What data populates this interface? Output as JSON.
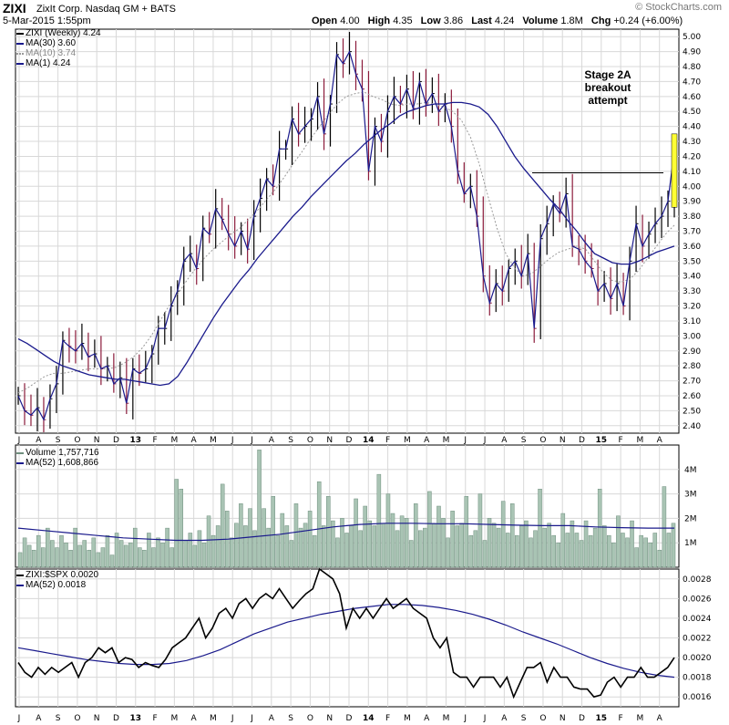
{
  "header": {
    "ticker": "ZIXI",
    "company": "ZixIt Corp.  Nasdaq GM + BATS",
    "watermark": "© StockCharts.com",
    "date": "5-Mar-2015 1:55pm",
    "stats": [
      {
        "label": "Open",
        "value": "4.00"
      },
      {
        "label": "High",
        "value": "4.35"
      },
      {
        "label": "Low",
        "value": "3.86"
      },
      {
        "label": "Last",
        "value": "4.24"
      },
      {
        "label": "Volume",
        "value": "1.8M"
      },
      {
        "label": "Chg",
        "value": "+0.24 (+6.00%)"
      }
    ]
  },
  "legends": {
    "price": [
      "ZIXI (Weekly) 4.24",
      "MA(30) 3.60",
      "MA(10) 3.74",
      "MA(1) 4.24"
    ],
    "volume": [
      "Volume 1,757,716",
      "MA(52) 1,608,866"
    ],
    "ratio": [
      "ZIXI:$SPX 0.0020",
      "MA(52) 0.0018"
    ]
  },
  "annotation": [
    "Stage 2A",
    "breakout",
    "attempt"
  ],
  "colors": {
    "ma_line": "#1a1a8c",
    "ma10": "#999999",
    "bar_up": "#000000",
    "bar_down": "#8b1a3a",
    "volume_fill": "#a9c4b4",
    "volume_stroke": "#6f8f7e",
    "highlight": "#ffff33",
    "grid": "#d8d8d8"
  },
  "chart_data": [
    {
      "type": "line",
      "panel": "price",
      "title": "ZIXI (Weekly)",
      "x_labels": [
        "J",
        "A",
        "S",
        "O",
        "N",
        "D",
        "13",
        "F",
        "M",
        "A",
        "M",
        "J",
        "J",
        "A",
        "S",
        "O",
        "N",
        "D",
        "14",
        "F",
        "M",
        "A",
        "M",
        "J",
        "J",
        "A",
        "S",
        "O",
        "N",
        "D",
        "15",
        "F",
        "M",
        "A"
      ],
      "y_ticks": [
        2.4,
        2.5,
        2.6,
        2.7,
        2.8,
        2.9,
        3.0,
        3.1,
        3.2,
        3.3,
        3.4,
        3.5,
        3.6,
        3.7,
        3.8,
        3.9,
        4.0,
        4.1,
        4.2,
        4.3,
        4.4,
        4.5,
        4.6,
        4.7,
        4.8,
        4.9,
        5.0
      ],
      "ylim": [
        2.35,
        5.05
      ],
      "resistance_level": 4.09,
      "series": [
        {
          "name": "ZIXI (Weekly)",
          "role": "close",
          "values": [
            2.6,
            2.5,
            2.47,
            2.52,
            2.44,
            2.58,
            2.68,
            2.97,
            2.93,
            2.9,
            2.95,
            2.86,
            2.88,
            2.78,
            2.8,
            2.68,
            2.72,
            2.55,
            2.78,
            2.75,
            2.78,
            2.88,
            3.05,
            3.05,
            3.2,
            3.3,
            3.5,
            3.55,
            3.45,
            3.72,
            3.68,
            3.85,
            3.78,
            3.68,
            3.6,
            3.7,
            3.58,
            3.8,
            3.92,
            4.05,
            4.0,
            4.25,
            4.25,
            4.45,
            4.35,
            4.4,
            4.45,
            4.6,
            4.35,
            4.55,
            4.88,
            4.82,
            4.9,
            4.75,
            4.65,
            4.1,
            4.4,
            4.3,
            4.5,
            4.6,
            4.55,
            4.65,
            4.52,
            4.7,
            4.55,
            4.62,
            4.5,
            4.55,
            4.4,
            4.1,
            3.95,
            4.0,
            3.8,
            3.4,
            3.22,
            3.35,
            3.3,
            3.45,
            3.5,
            3.4,
            3.55,
            3.05,
            3.65,
            3.75,
            3.88,
            3.82,
            3.95,
            3.6,
            3.58,
            3.5,
            3.45,
            3.3,
            3.35,
            3.25,
            3.35,
            3.2,
            3.5,
            3.75,
            3.6,
            3.68,
            3.75,
            3.8,
            3.9,
            4.24
          ]
        },
        {
          "name": "MA(30)",
          "values": [
            2.98,
            2.95,
            2.91,
            2.87,
            2.83,
            2.8,
            2.78,
            2.76,
            2.74,
            2.73,
            2.72,
            2.71,
            2.71,
            2.7,
            2.69,
            2.68,
            2.67,
            2.68,
            2.73,
            2.82,
            2.92,
            3.02,
            3.12,
            3.21,
            3.29,
            3.37,
            3.44,
            3.52,
            3.59,
            3.66,
            3.73,
            3.8,
            3.86,
            3.93,
            3.99,
            4.05,
            4.11,
            4.17,
            4.22,
            4.28,
            4.33,
            4.38,
            4.42,
            4.47,
            4.5,
            4.52,
            4.54,
            4.55,
            4.55,
            4.56,
            4.56,
            4.55,
            4.53,
            4.48,
            4.4,
            4.3,
            4.2,
            4.12,
            4.05,
            3.98,
            3.91,
            3.85,
            3.77,
            3.7,
            3.62,
            3.55,
            3.52,
            3.49,
            3.48,
            3.48,
            3.5,
            3.53,
            3.56,
            3.58,
            3.6
          ]
        },
        {
          "name": "MA(10)",
          "values": [
            2.62,
            2.65,
            2.69,
            2.73,
            2.75,
            2.75,
            2.76,
            2.77,
            2.78,
            2.78,
            2.78,
            2.79,
            2.82,
            2.86,
            2.92,
            3.0,
            3.1,
            3.2,
            3.28,
            3.37,
            3.45,
            3.52,
            3.58,
            3.63,
            3.68,
            3.72,
            3.78,
            3.84,
            3.91,
            3.98,
            4.06,
            4.15,
            4.23,
            4.32,
            4.4,
            4.48,
            4.55,
            4.6,
            4.62,
            4.63,
            4.6,
            4.58,
            4.55,
            4.54,
            4.55,
            4.55,
            4.56,
            4.55,
            4.53,
            4.5,
            4.44,
            4.33,
            4.15,
            3.93,
            3.72,
            3.55,
            3.45,
            3.4,
            3.42,
            3.47,
            3.52,
            3.56,
            3.58,
            3.6,
            3.58,
            3.5,
            3.42,
            3.37,
            3.36,
            3.38,
            3.44,
            3.52,
            3.6,
            3.68,
            3.74
          ]
        }
      ]
    },
    {
      "type": "bar",
      "panel": "volume",
      "title": "Volume",
      "y_ticks": [
        "1M",
        "2M",
        "3M",
        "4M"
      ],
      "ylim": [
        0,
        5000000
      ],
      "series": [
        {
          "name": "Volume",
          "values": [
            600000,
            1200000,
            900000,
            700000,
            1300000,
            800000,
            1600000,
            1100000,
            800000,
            1300000,
            1000000,
            700000,
            1600000,
            900000,
            1100000,
            700000,
            1200000,
            600000,
            800000,
            1300000,
            500000,
            1400000,
            1100000,
            900000,
            1000000,
            1600000,
            800000,
            700000,
            1400000,
            800000,
            1200000,
            1000000,
            1600000,
            800000,
            3600000,
            3200000,
            1100000,
            1400000,
            900000,
            1500000,
            1000000,
            2100000,
            1300000,
            1700000,
            3400000,
            2300000,
            1200000,
            1800000,
            2600000,
            1700000,
            2400000,
            1500000,
            4800000,
            2400000,
            1600000,
            2900000,
            1300000,
            2200000,
            1700000,
            1100000,
            2600000,
            1600000,
            1800000,
            2300000,
            1300000,
            3500000,
            1700000,
            2900000,
            1900000,
            1200000,
            2000000,
            1400000,
            1700000,
            2800000,
            1500000,
            2500000,
            1900000,
            1700000,
            3800000,
            1800000,
            3000000,
            2200000,
            1500000,
            2100000,
            2000000,
            1100000,
            2600000,
            1500000,
            1600000,
            3100000,
            1800000,
            2500000,
            2000000,
            1200000,
            2300000,
            1700000,
            1800000,
            2900000,
            1300000,
            1500000,
            3000000,
            1100000,
            2000000,
            1800000,
            1600000,
            2700000,
            1400000,
            2600000,
            1300000,
            1700000,
            1900000,
            1200000,
            1500000,
            3200000,
            1600000,
            1800000,
            1300000,
            1000000,
            2200000,
            1400000,
            1900000,
            1400000,
            1100000,
            1900000,
            1300000,
            1600000,
            3200000,
            1700000,
            1300000,
            1000000,
            2100000,
            1400000,
            1200000,
            1900000,
            800000,
            1300000,
            1200000,
            1000000,
            1400000,
            700000,
            3300000,
            1400000,
            1800000
          ]
        },
        {
          "name": "MA(52)",
          "values": [
            1600000,
            1500000,
            1400000,
            1300000,
            1200000,
            1150000,
            1100000,
            1100000,
            1150000,
            1250000,
            1350000,
            1500000,
            1650000,
            1750000,
            1800000,
            1800000,
            1780000,
            1780000,
            1750000,
            1720000,
            1700000,
            1700000,
            1650000,
            1620000,
            1600000,
            1600000
          ]
        }
      ]
    },
    {
      "type": "line",
      "panel": "ratio",
      "title": "ZIXI:$SPX",
      "y_ticks": [
        0.0016,
        0.0018,
        0.002,
        0.0022,
        0.0024,
        0.0026,
        0.0028
      ],
      "ylim": [
        0.0015,
        0.0029
      ],
      "series": [
        {
          "name": "ZIXI:$SPX",
          "values": [
            0.00195,
            0.00185,
            0.0018,
            0.0019,
            0.00183,
            0.0019,
            0.00185,
            0.0019,
            0.00195,
            0.0018,
            0.00195,
            0.002,
            0.0021,
            0.00205,
            0.0021,
            0.00195,
            0.002,
            0.00198,
            0.0019,
            0.00195,
            0.00192,
            0.0019,
            0.00198,
            0.0021,
            0.00215,
            0.0022,
            0.0023,
            0.0024,
            0.0022,
            0.0023,
            0.00245,
            0.0025,
            0.0024,
            0.00255,
            0.0026,
            0.0025,
            0.0026,
            0.00265,
            0.0026,
            0.0027,
            0.0026,
            0.0025,
            0.00258,
            0.00265,
            0.0027,
            0.0029,
            0.00285,
            0.0028,
            0.00265,
            0.0023,
            0.0025,
            0.0024,
            0.0025,
            0.0024,
            0.0025,
            0.0026,
            0.0025,
            0.00255,
            0.0026,
            0.0025,
            0.00245,
            0.0024,
            0.0022,
            0.0021,
            0.0022,
            0.00185,
            0.0018,
            0.0018,
            0.0017,
            0.0018,
            0.0018,
            0.0018,
            0.0017,
            0.0018,
            0.0016,
            0.00175,
            0.0019,
            0.0019,
            0.00195,
            0.00175,
            0.0019,
            0.0018,
            0.0018,
            0.0017,
            0.00168,
            0.00168,
            0.0016,
            0.00162,
            0.00175,
            0.0018,
            0.0017,
            0.0018,
            0.0018,
            0.0019,
            0.0018,
            0.0018,
            0.00185,
            0.0019,
            0.002
          ]
        },
        {
          "name": "MA(52)",
          "values": [
            0.0021,
            0.00207,
            0.00204,
            0.00201,
            0.00198,
            0.00196,
            0.00194,
            0.00193,
            0.00193,
            0.00194,
            0.00197,
            0.00202,
            0.00208,
            0.00216,
            0.00224,
            0.0023,
            0.00236,
            0.0024,
            0.00244,
            0.00247,
            0.0025,
            0.00252,
            0.00254,
            0.00254,
            0.00253,
            0.00251,
            0.00248,
            0.00244,
            0.00239,
            0.00233,
            0.00226,
            0.0022,
            0.00214,
            0.00207,
            0.002,
            0.00194,
            0.00189,
            0.00185,
            0.00182,
            0.0018
          ]
        }
      ]
    }
  ]
}
